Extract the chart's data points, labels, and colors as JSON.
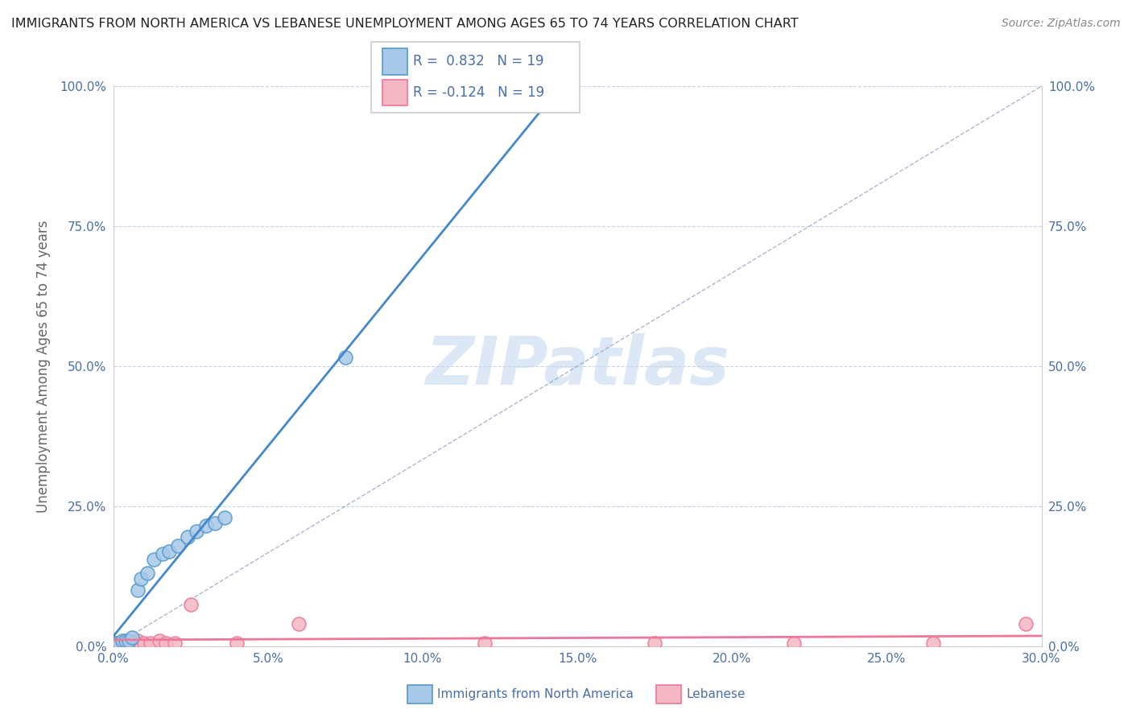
{
  "title": "IMMIGRANTS FROM NORTH AMERICA VS LEBANESE UNEMPLOYMENT AMONG AGES 65 TO 74 YEARS CORRELATION CHART",
  "source": "Source: ZipAtlas.com",
  "ylabel": "Unemployment Among Ages 65 to 74 years",
  "xlabel_blue": "Immigrants from North America",
  "xlabel_pink": "Lebanese",
  "legend_blue_r": "0.832",
  "legend_blue_n": "19",
  "legend_pink_r": "-0.124",
  "legend_pink_n": "19",
  "xlim": [
    0.0,
    0.3
  ],
  "ylim": [
    0.0,
    1.0
  ],
  "xticks": [
    0.0,
    0.05,
    0.1,
    0.15,
    0.2,
    0.25,
    0.3
  ],
  "xtick_labels": [
    "0.0%",
    "5.0%",
    "10.0%",
    "15.0%",
    "20.0%",
    "25.0%",
    "30.0%"
  ],
  "yticks": [
    0.0,
    0.25,
    0.5,
    0.75,
    1.0
  ],
  "ytick_labels": [
    "0.0%",
    "25.0%",
    "50.0%",
    "75.0%",
    "100.0%"
  ],
  "blue_scatter_x": [
    0.001,
    0.002,
    0.003,
    0.004,
    0.005,
    0.006,
    0.008,
    0.009,
    0.011,
    0.013,
    0.016,
    0.018,
    0.021,
    0.024,
    0.027,
    0.03,
    0.033,
    0.036,
    0.075
  ],
  "blue_scatter_y": [
    0.005,
    0.005,
    0.01,
    0.01,
    0.01,
    0.015,
    0.1,
    0.12,
    0.13,
    0.155,
    0.165,
    0.17,
    0.18,
    0.195,
    0.205,
    0.215,
    0.22,
    0.23,
    0.515
  ],
  "pink_scatter_x": [
    0.001,
    0.002,
    0.003,
    0.005,
    0.006,
    0.008,
    0.01,
    0.012,
    0.015,
    0.017,
    0.02,
    0.025,
    0.04,
    0.06,
    0.12,
    0.175,
    0.22,
    0.265,
    0.295
  ],
  "pink_scatter_y": [
    0.005,
    0.005,
    0.005,
    0.005,
    0.005,
    0.01,
    0.005,
    0.005,
    0.01,
    0.005,
    0.005,
    0.075,
    0.005,
    0.04,
    0.005,
    0.005,
    0.005,
    0.005,
    0.04
  ],
  "blue_color": "#a8c8e8",
  "pink_color": "#f4b8c4",
  "blue_edge_color": "#5599cc",
  "pink_edge_color": "#ee7799",
  "blue_line_color": "#4488cc",
  "pink_line_color": "#ee7799",
  "ref_line_color": "#8899bb",
  "background_color": "#ffffff",
  "title_color": "#222222",
  "source_color": "#888888",
  "label_color": "#4a6fa5",
  "watermark_color": "#dce8f5",
  "grid_color": "#c8d4e8"
}
